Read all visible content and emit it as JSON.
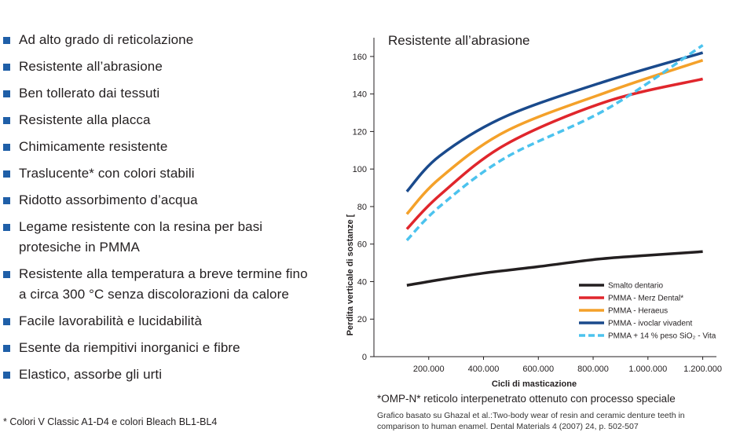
{
  "features": [
    "Ad alto grado di reticolazione",
    "Resistente all’abrasione",
    "Ben tollerato dai tessuti",
    "Resistente alla placca",
    "Chimicamente resistente",
    "Traslucente* con colori stabili",
    "Ridotto assorbimento d’acqua",
    "Legame resistente con la resina per basi protesiche in PMMA",
    "Resistente alla temperatura a breve termine fino a circa 300 °C senza discolorazioni da calore",
    "Facile lavorabilità e lucidabilità",
    "Esente da riempitivi inorganici e fibre",
    "Elastico, assorbe gli urti"
  ],
  "footnote": "* Colori V Classic A1-D4 e colori Bleach BL1-BL4",
  "omp_note": "*OMP-N* reticolo interpenetrato ottenuto con processo speciale",
  "source_note": "Grafico basato su Ghazal et al.:Two-body wear of resin and ceramic denture teeth in comparison to human enamel. Dental Materials 4 (2007) 24, p. 502-507",
  "chart_data": {
    "type": "line",
    "title": "Resistente all’abrasione",
    "xlabel": "Cicli di masticazione",
    "ylabel": "Perdita verticale di sostanze [",
    "xlim": [
      0,
      1250000
    ],
    "ylim": [
      0,
      170
    ],
    "xticks": [
      200000,
      400000,
      600000,
      800000,
      1000000,
      1200000
    ],
    "xtick_labels": [
      "200.000",
      "400.000",
      "600.000",
      "800.000",
      "1.000.000",
      "1.200.000"
    ],
    "yticks": [
      0,
      20,
      40,
      60,
      80,
      100,
      120,
      140,
      160
    ],
    "ytick_labels": [
      "0",
      "20",
      "40",
      "60",
      "80",
      "100",
      "120",
      "140",
      "160"
    ],
    "legend_position": "bottom-right",
    "grid": false,
    "series": [
      {
        "name": "Smalto dentario",
        "color": "#231f20",
        "dash": false,
        "x": [
          120000,
          240000,
          400000,
          600000,
          820000,
          1000000,
          1200000
        ],
        "y": [
          38,
          41,
          44.5,
          48,
          52,
          54,
          56
        ]
      },
      {
        "name": "PMMA - Merz Dental*",
        "color": "#e0262c",
        "dash": false,
        "x": [
          120000,
          240000,
          480000,
          850000,
          1200000
        ],
        "y": [
          68,
          86,
          113,
          136,
          148
        ]
      },
      {
        "name": "PMMA - Heraeus",
        "color": "#f4a12a",
        "dash": false,
        "x": [
          120000,
          240000,
          480000,
          850000,
          1200000
        ],
        "y": [
          76,
          95,
          120,
          141,
          158
        ]
      },
      {
        "name": "PMMA - ivoclar vivadent",
        "color": "#1a4a8c",
        "dash": false,
        "x": [
          120000,
          240000,
          480000,
          850000,
          1200000
        ],
        "y": [
          88,
          107,
          128,
          147,
          162
        ]
      },
      {
        "name": "PMMA + 14 % peso SiO₂ - Vita",
        "color": "#4cc3ee",
        "dash": true,
        "x": [
          120000,
          240000,
          480000,
          850000,
          1200000
        ],
        "y": [
          62,
          80,
          106,
          132,
          166
        ]
      }
    ]
  }
}
